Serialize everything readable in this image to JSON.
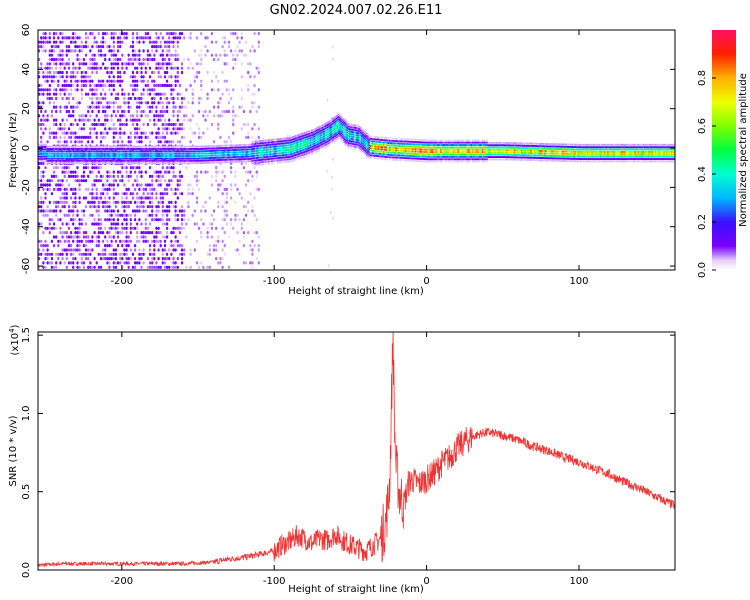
{
  "figure": {
    "title": "GN02.2024.007.02.26.E11"
  },
  "chart_data": [
    {
      "type": "heatmap",
      "xlabel": "Height of straight line (km)",
      "ylabel": "Frequency (Hz)",
      "xlim": [
        -255,
        163
      ],
      "ylim": [
        -62,
        60
      ],
      "xticks": [
        -200,
        -100,
        0,
        100
      ],
      "yticks": [
        -60,
        -40,
        -20,
        0,
        20,
        40,
        60
      ],
      "colorbar": {
        "label": "Normalized spectral amplitude",
        "range": [
          0.0,
          1.0
        ],
        "ticks": [
          0.0,
          0.2,
          0.4,
          0.6,
          0.8
        ],
        "colormap": "rainbow (magenta-blue-cyan-green-yellow-red)"
      },
      "features": [
        {
          "description_points": [
            [
              -250,
              -3
            ],
            [
              -200,
              -3
            ],
            [
              -150,
              -3
            ],
            [
              -115,
              -2
            ],
            [
              -90,
              0
            ],
            [
              -75,
              4
            ],
            [
              -65,
              8
            ],
            [
              -58,
              12
            ],
            [
              -52,
              7
            ],
            [
              -45,
              6
            ],
            [
              -38,
              1
            ],
            [
              -25,
              0
            ],
            [
              0,
              -1
            ],
            [
              50,
              -1
            ],
            [
              100,
              -2
            ],
            [
              163,
              -2
            ]
          ],
          "peak_amplitude_range_km": [
            -38,
            163
          ]
        }
      ]
    },
    {
      "type": "line",
      "xlabel": "Height of straight line (km)",
      "ylabel": "SNR (10 * v/v)",
      "y_multiplier": "(x10",
      "y_multiplier_exp": "4",
      "y_multiplier_close": ")",
      "xlim": [
        -255,
        163
      ],
      "ylim": [
        0,
        1.52
      ],
      "xticks": [
        -200,
        -100,
        0,
        100
      ],
      "yticks": [
        0.0,
        0.5,
        1.0,
        1.5
      ],
      "ytick_labels": [
        "0.0",
        "0.5",
        "1.0",
        "1.5"
      ],
      "series": [
        {
          "color": "#f03232",
          "x": [
            -255,
            -240,
            -220,
            -200,
            -180,
            -160,
            -140,
            -130,
            -120,
            -110,
            -100,
            -95,
            -90,
            -85,
            -80,
            -75,
            -70,
            -65,
            -60,
            -55,
            -50,
            -45,
            -40,
            -35,
            -30,
            -27,
            -25,
            -24,
            -23,
            -22,
            -21,
            -20,
            -18,
            -15,
            -12,
            -10,
            -5,
            0,
            5,
            10,
            15,
            20,
            25,
            30,
            35,
            40,
            45,
            50,
            60,
            70,
            80,
            90,
            100,
            110,
            120,
            130,
            140,
            150,
            163
          ],
          "y": [
            0.03,
            0.04,
            0.04,
            0.04,
            0.04,
            0.04,
            0.05,
            0.07,
            0.08,
            0.1,
            0.12,
            0.16,
            0.18,
            0.22,
            0.2,
            0.17,
            0.2,
            0.19,
            0.23,
            0.19,
            0.16,
            0.14,
            0.12,
            0.16,
            0.2,
            0.3,
            0.45,
            0.62,
            1.1,
            1.5,
            0.9,
            0.65,
            0.5,
            0.42,
            0.55,
            0.58,
            0.55,
            0.58,
            0.62,
            0.68,
            0.72,
            0.78,
            0.82,
            0.85,
            0.87,
            0.88,
            0.87,
            0.86,
            0.83,
            0.79,
            0.76,
            0.72,
            0.69,
            0.65,
            0.61,
            0.56,
            0.52,
            0.47,
            0.41
          ]
        }
      ]
    }
  ]
}
